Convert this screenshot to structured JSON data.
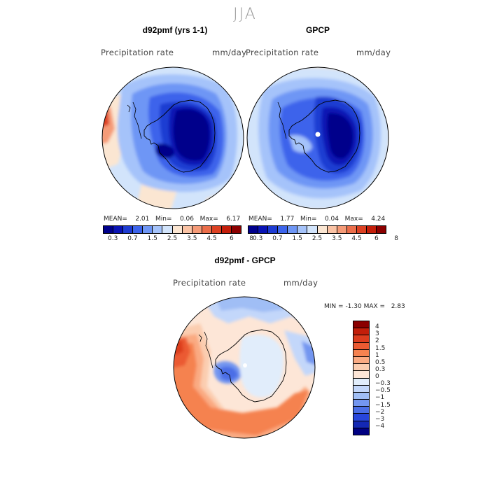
{
  "figure": {
    "title": "JJA"
  },
  "panels": [
    {
      "title": "d92pmf (yrs 1-1)",
      "variable": "Precipitation rate",
      "units": "mm/day",
      "stats": {
        "mean_label": "MEAN=",
        "mean": "2.01",
        "min_label": "Min=",
        "min": "0.06",
        "max_label": "Max=",
        "max": "6.17"
      }
    },
    {
      "title": "GPCP",
      "variable": "Precipitation rate",
      "units": "mm/day",
      "stats": {
        "mean_label": "MEAN=",
        "mean": "1.77",
        "min_label": "Min=",
        "min": "0.04",
        "max_label": "Max=",
        "max": "4.24"
      }
    },
    {
      "title": "d92pmf - GPCP",
      "variable": "Precipitation rate",
      "units": "mm/day",
      "stats": {
        "min_label": "MIN =",
        "min": "-1.30",
        "max_label": "MAX =",
        "max": "2.83"
      }
    }
  ],
  "colorbars": {
    "precip": {
      "tick_labels": [
        "0.3",
        "0.7",
        "1.5",
        "2.5",
        "3.5",
        "4.5",
        "6",
        "8"
      ],
      "colors": [
        "#00008b",
        "#0a14b4",
        "#1e3cd2",
        "#3c64eb",
        "#6e96f5",
        "#a5c3fa",
        "#d2e4fb",
        "#fbe6d2",
        "#fac3a5",
        "#f59b78",
        "#eb6e4b",
        "#dc4123",
        "#c31e0a",
        "#8b0000"
      ]
    },
    "diff": {
      "tick_labels": [
        "4",
        "3",
        "2",
        "1.5",
        "1",
        "0.5",
        "0.3",
        "0",
        "−0.3",
        "−0.5",
        "−1",
        "−1.5",
        "−2",
        "−3",
        "−4"
      ],
      "colors": [
        "#8b0000",
        "#c31e0a",
        "#dc3c1e",
        "#eb5a32",
        "#f58250",
        "#faaa82",
        "#fbcdb0",
        "#fde6d7",
        "#e1edfb",
        "#c3d7fa",
        "#a0bef5",
        "#7396f0",
        "#4b6ee6",
        "#2846dc",
        "#1428b4",
        "#000082"
      ]
    }
  },
  "map": {
    "projection": "south polar stereographic",
    "region": "Antarctica / Southern Ocean"
  }
}
